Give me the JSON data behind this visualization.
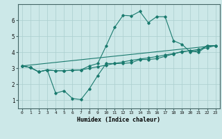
{
  "xlabel": "Humidex (Indice chaleur)",
  "background_color": "#cce8e8",
  "line_color": "#1a7a6e",
  "xlim": [
    -0.5,
    23.5
  ],
  "ylim": [
    0.5,
    7.0
  ],
  "yticks": [
    1,
    2,
    3,
    4,
    5,
    6
  ],
  "xticks": [
    0,
    1,
    2,
    3,
    4,
    5,
    6,
    7,
    8,
    9,
    10,
    11,
    12,
    13,
    14,
    15,
    16,
    17,
    18,
    19,
    20,
    21,
    22,
    23
  ],
  "line1_x": [
    0,
    1,
    2,
    3,
    4,
    5,
    6,
    7,
    8,
    9,
    10,
    11,
    12,
    13,
    14,
    15,
    16,
    17,
    18,
    19,
    20,
    21,
    22,
    23
  ],
  "line1_y": [
    3.15,
    3.05,
    2.78,
    2.9,
    2.85,
    2.85,
    2.88,
    2.9,
    3.0,
    3.1,
    3.2,
    3.3,
    3.4,
    3.5,
    3.58,
    3.65,
    3.73,
    3.83,
    3.92,
    4.02,
    4.1,
    4.18,
    4.28,
    4.42
  ],
  "line2_x": [
    0,
    1,
    2,
    3,
    4,
    5,
    6,
    7,
    8,
    9,
    10,
    11,
    12,
    13,
    14,
    15,
    16,
    17,
    18,
    19,
    20,
    21,
    22,
    23
  ],
  "line2_y": [
    3.15,
    3.05,
    2.78,
    2.9,
    2.85,
    2.85,
    2.88,
    2.9,
    3.15,
    3.3,
    4.4,
    5.55,
    6.3,
    6.27,
    6.55,
    5.85,
    6.22,
    6.22,
    4.72,
    4.5,
    4.02,
    4.12,
    4.42,
    4.42
  ],
  "line3_x": [
    0,
    1,
    2,
    3,
    4,
    5,
    6,
    7,
    8,
    9,
    10,
    11,
    12,
    13,
    14,
    15,
    16,
    17,
    18,
    19,
    20,
    21,
    22,
    23
  ],
  "line3_y": [
    3.15,
    3.05,
    2.78,
    2.9,
    1.45,
    1.6,
    1.12,
    1.05,
    1.72,
    2.55,
    3.3,
    3.3,
    3.3,
    3.35,
    3.55,
    3.55,
    3.6,
    3.75,
    3.9,
    4.05,
    4.1,
    4.0,
    4.42,
    4.42
  ],
  "line4_x": [
    0,
    23
  ],
  "line4_y": [
    3.15,
    4.42
  ]
}
